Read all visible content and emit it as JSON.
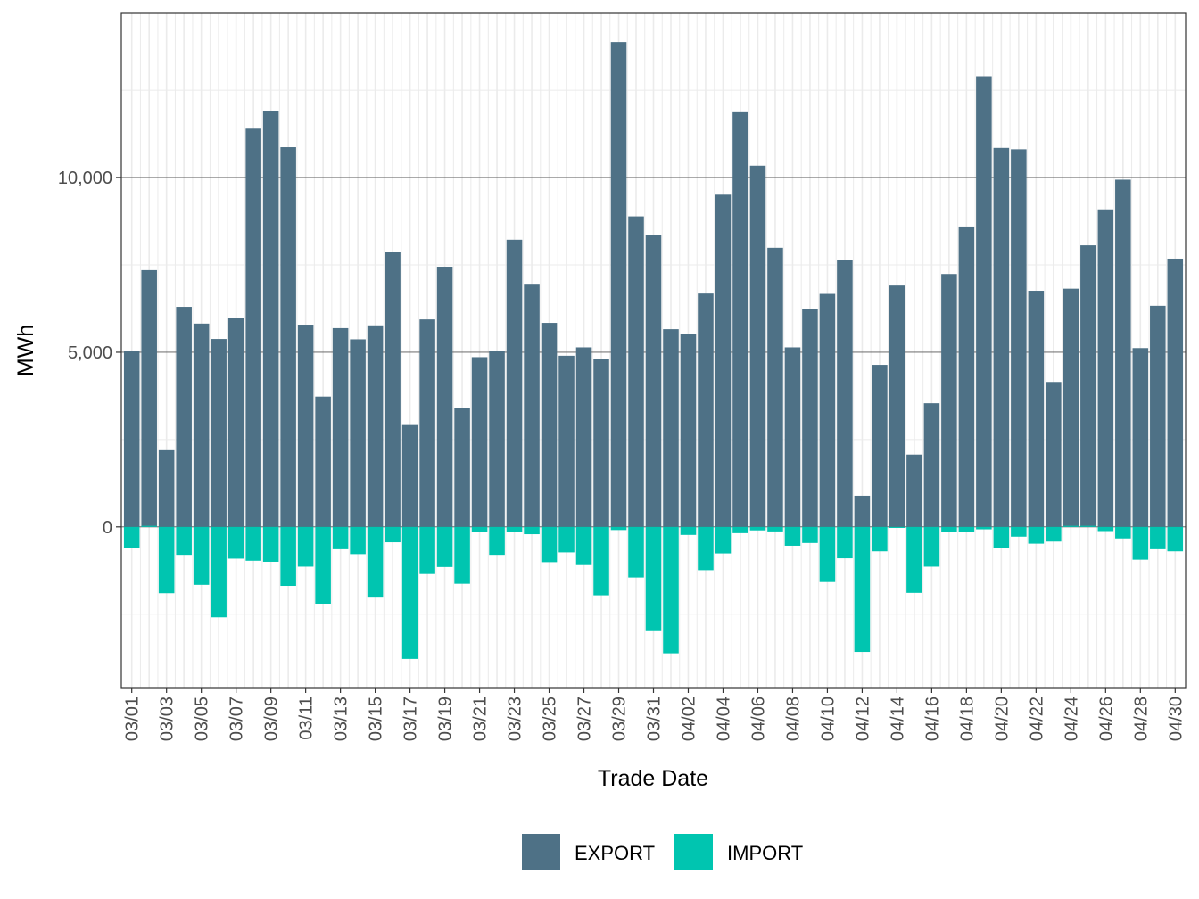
{
  "chart_data": {
    "type": "bar",
    "xlabel": "Trade Date",
    "ylabel": "MWh",
    "ylim": [
      -4600,
      14700
    ],
    "y_ticks": [
      0,
      5000,
      10000
    ],
    "y_tick_labels": [
      "0",
      "5,000",
      "10,000"
    ],
    "grid": true,
    "legend_position": "bottom",
    "categories": [
      "03/01",
      "03/02",
      "03/03",
      "03/04",
      "03/05",
      "03/06",
      "03/07",
      "03/08",
      "03/09",
      "03/10",
      "03/11",
      "03/12",
      "03/13",
      "03/14",
      "03/15",
      "03/16",
      "03/17",
      "03/18",
      "03/19",
      "03/20",
      "03/21",
      "03/22",
      "03/23",
      "03/24",
      "03/25",
      "03/26",
      "03/27",
      "03/28",
      "03/29",
      "03/30",
      "03/31",
      "04/01",
      "04/02",
      "04/03",
      "04/04",
      "04/05",
      "04/06",
      "04/07",
      "04/08",
      "04/09",
      "04/10",
      "04/11",
      "04/12",
      "04/13",
      "04/14",
      "04/15",
      "04/16",
      "04/17",
      "04/18",
      "04/19",
      "04/20",
      "04/21",
      "04/22",
      "04/23",
      "04/24",
      "04/25",
      "04/26",
      "04/27",
      "04/28",
      "04/29",
      "04/30"
    ],
    "x_tick_labels": [
      "03/01",
      "03/03",
      "03/05",
      "03/07",
      "03/09",
      "03/11",
      "03/13",
      "03/15",
      "03/17",
      "03/19",
      "03/21",
      "03/23",
      "03/25",
      "03/27",
      "03/29",
      "03/31",
      "04/02",
      "04/04",
      "04/06",
      "04/08",
      "04/10",
      "04/12",
      "04/14",
      "04/16",
      "04/18",
      "04/20",
      "04/22",
      "04/24",
      "04/26",
      "04/28",
      "04/30"
    ],
    "series": [
      {
        "name": "EXPORT",
        "color": "#4e7186",
        "values": [
          5030,
          7350,
          2220,
          6300,
          5820,
          5380,
          5980,
          11400,
          11900,
          10870,
          5790,
          3730,
          5690,
          5370,
          5770,
          7880,
          2940,
          5940,
          7450,
          3400,
          4860,
          5040,
          8220,
          6960,
          5840,
          4900,
          5140,
          4800,
          13880,
          8890,
          8360,
          5660,
          5510,
          6680,
          9510,
          11870,
          10340,
          7990,
          5140,
          6230,
          6670,
          7630,
          890,
          4640,
          6910,
          2070,
          3540,
          7240,
          8600,
          12900,
          10850,
          10810,
          6760,
          4150,
          6820,
          8060,
          9090,
          9940,
          5120,
          6330,
          7680
        ]
      },
      {
        "name": "IMPORT",
        "color": "#00c5b0",
        "values": [
          -600,
          30,
          -1900,
          -800,
          -1660,
          -2590,
          -910,
          -970,
          -1000,
          -1690,
          -1140,
          -2200,
          -640,
          -780,
          -2000,
          -440,
          -3780,
          -1350,
          -1150,
          -1630,
          -150,
          -800,
          -150,
          -210,
          -1010,
          -730,
          -1070,
          -1960,
          -90,
          -1450,
          -2960,
          -3620,
          -230,
          -1240,
          -760,
          -180,
          -100,
          -130,
          -540,
          -460,
          -1580,
          -900,
          -3580,
          -700,
          -30,
          -1890,
          -1140,
          -140,
          -140,
          -70,
          -600,
          -280,
          -480,
          -420,
          30,
          30,
          -120,
          -330,
          -940,
          -640,
          -700
        ]
      }
    ]
  }
}
